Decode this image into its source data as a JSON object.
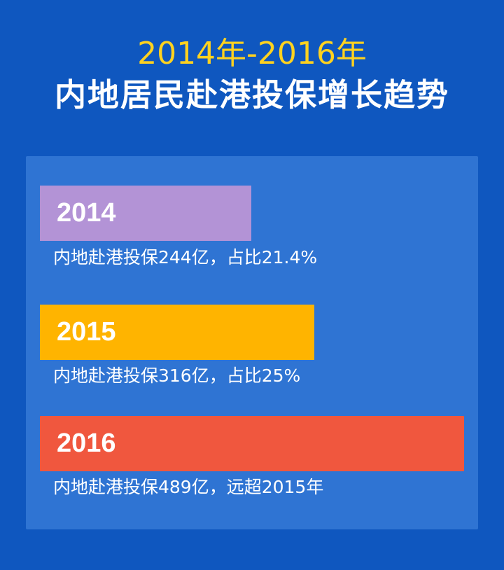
{
  "header": {
    "title_line1": "2014年-2016年",
    "title_line2": "内地居民赴港投保增长趋势"
  },
  "chart_data": {
    "type": "bar",
    "orientation": "horizontal",
    "categories": [
      "2014",
      "2015",
      "2016"
    ],
    "values": [
      244,
      316,
      489
    ],
    "unit": "亿",
    "colors": [
      "#b393d6",
      "#ffb400",
      "#f0573e"
    ],
    "captions": [
      "内地赴港投保244亿，占比21.4%",
      "内地赴港投保316亿，占比25%",
      "内地赴港投保489亿，远超2015年"
    ]
  },
  "colors": {
    "background": "#0f57bf",
    "panel": "#2f74d3",
    "title_accent": "#ffd21f"
  }
}
